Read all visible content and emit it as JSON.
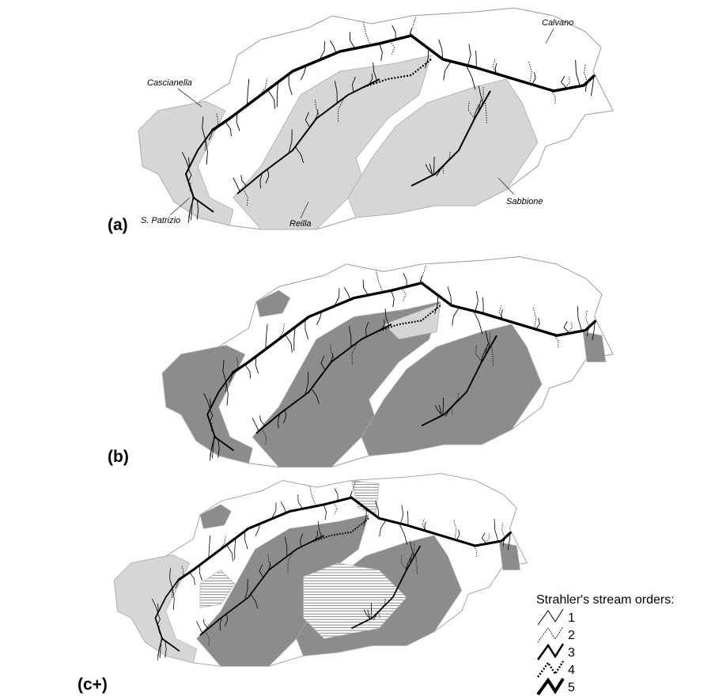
{
  "panels": [
    {
      "label": "(a)"
    },
    {
      "label": "(b)"
    },
    {
      "label": "(c+)"
    }
  ],
  "basins": [
    {
      "name": "Cascianella"
    },
    {
      "name": "Calvano"
    },
    {
      "name": "S. Patrizio"
    },
    {
      "name": "Reilla"
    },
    {
      "name": "Sabbione"
    }
  ],
  "legend": {
    "title": "Strahler's stream orders:",
    "items": [
      "1",
      "2",
      "3",
      "4",
      "5"
    ]
  }
}
